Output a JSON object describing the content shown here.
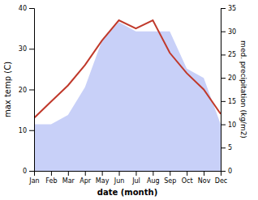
{
  "chart_data": {
    "type": "line",
    "xlabel": "date (month)",
    "ylabel": "max temp (C)",
    "y2label": "med. precipitation (kg/m2)",
    "categories": [
      "Jan",
      "Feb",
      "Mar",
      "Apr",
      "May",
      "Jun",
      "Jul",
      "Aug",
      "Sep",
      "Oct",
      "Nov",
      "Dec"
    ],
    "series": [
      {
        "type": "area",
        "axis": "y2",
        "color": "#c8d0f8",
        "values": [
          10,
          10,
          12,
          18,
          28,
          32,
          30,
          30,
          30,
          22,
          20,
          10
        ]
      },
      {
        "type": "line",
        "color": "#c0392b",
        "values": [
          13,
          17,
          21,
          26,
          32,
          37,
          35,
          37,
          29,
          24,
          20,
          14
        ]
      }
    ],
    "ylim": [
      0,
      40
    ],
    "yticks": [
      0,
      10,
      20,
      30,
      40
    ],
    "y2lim": [
      0,
      35
    ],
    "y2ticks": [
      0,
      5,
      10,
      15,
      20,
      25,
      30,
      35
    ],
    "grid": false
  }
}
